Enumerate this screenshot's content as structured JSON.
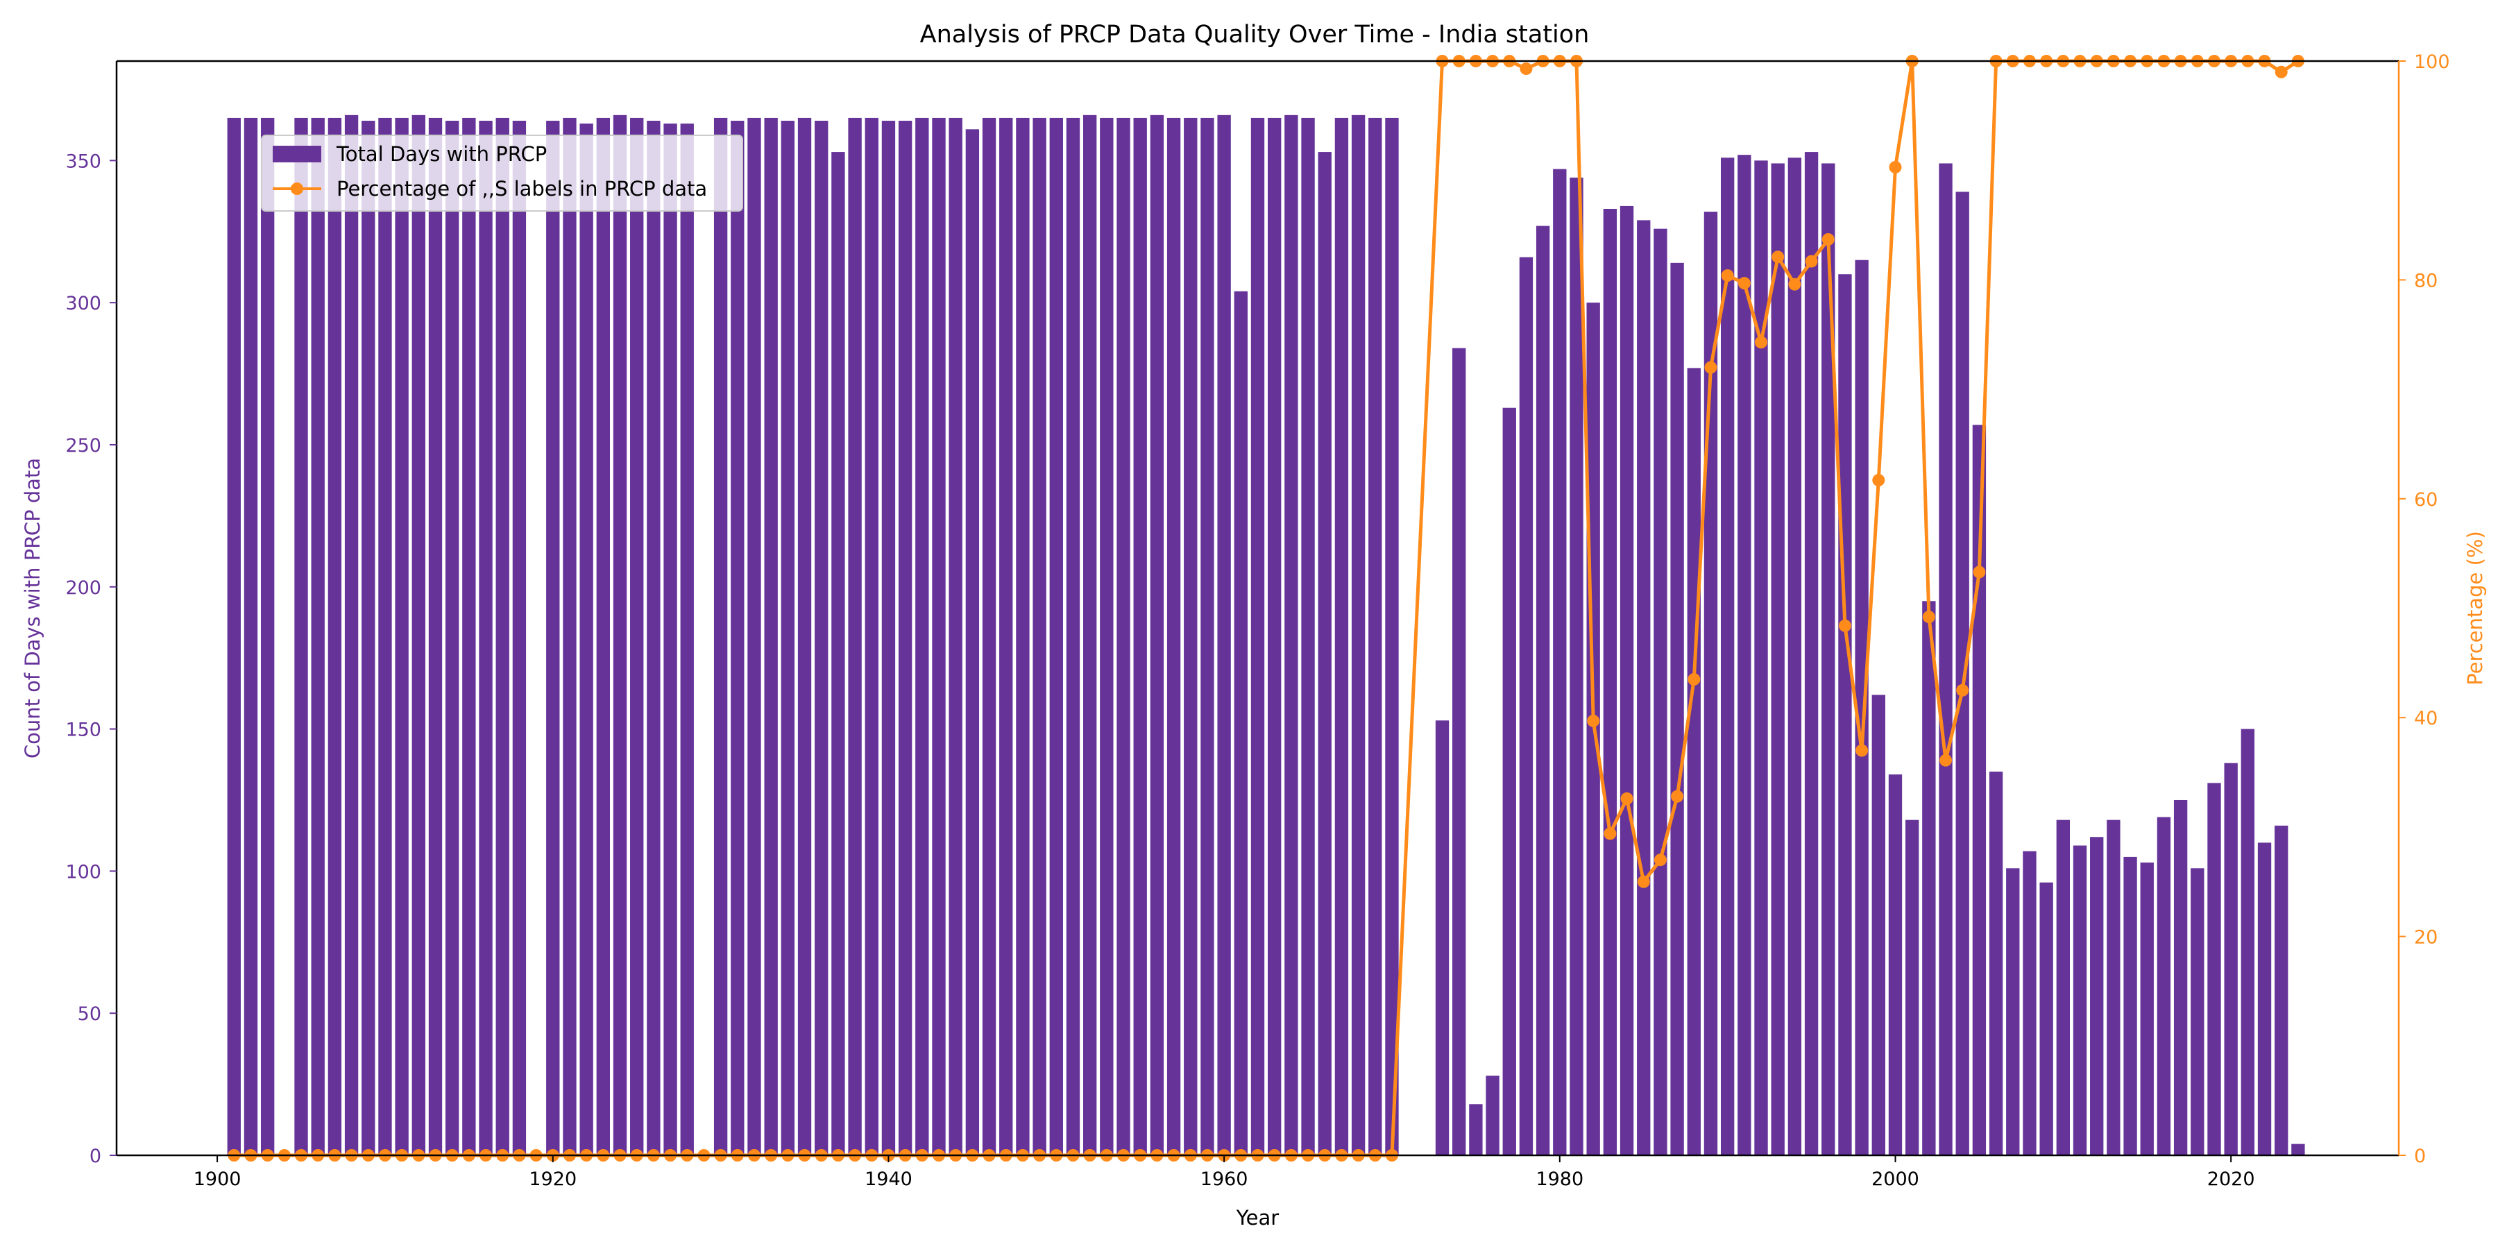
{
  "chart_data": {
    "type": "bar+line",
    "title": "Analysis of PRCP Data Quality Over Time - India station",
    "xlabel": "Year",
    "ylabel_left": "Count of Days with PRCP data",
    "ylabel_right": "Percentage (%)",
    "xlim": [
      1894,
      2030
    ],
    "ylim_left": [
      0,
      385
    ],
    "ylim_right": [
      0,
      100
    ],
    "x_ticks": [
      1900,
      1920,
      1940,
      1960,
      1980,
      2000,
      2020
    ],
    "y_left_ticks": [
      0,
      50,
      100,
      150,
      200,
      250,
      300,
      350
    ],
    "y_right_ticks": [
      0,
      20,
      40,
      60,
      80,
      100
    ],
    "grid": false,
    "legend_position": "upper-left",
    "colors": {
      "bars": "#663399",
      "line": "#ff8c1a",
      "axis": "#000000"
    },
    "series": [
      {
        "name": "Total Days with PRCP",
        "kind": "bar",
        "axis": "left",
        "x": [
          1901,
          1902,
          1903,
          1904,
          1905,
          1906,
          1907,
          1908,
          1909,
          1910,
          1911,
          1912,
          1913,
          1914,
          1915,
          1916,
          1917,
          1918,
          1919,
          1920,
          1921,
          1922,
          1923,
          1924,
          1925,
          1926,
          1927,
          1928,
          1929,
          1930,
          1931,
          1932,
          1933,
          1934,
          1935,
          1936,
          1937,
          1938,
          1939,
          1940,
          1941,
          1942,
          1943,
          1944,
          1945,
          1946,
          1947,
          1948,
          1949,
          1950,
          1951,
          1952,
          1953,
          1954,
          1955,
          1956,
          1957,
          1958,
          1959,
          1960,
          1961,
          1962,
          1963,
          1964,
          1965,
          1966,
          1967,
          1968,
          1969,
          1970,
          1973,
          1974,
          1975,
          1976,
          1977,
          1978,
          1979,
          1980,
          1981,
          1982,
          1983,
          1984,
          1985,
          1986,
          1987,
          1988,
          1989,
          1990,
          1991,
          1992,
          1993,
          1994,
          1995,
          1996,
          1997,
          1998,
          1999,
          2000,
          2001,
          2002,
          2003,
          2004,
          2005,
          2006,
          2007,
          2008,
          2009,
          2010,
          2011,
          2012,
          2013,
          2014,
          2015,
          2016,
          2017,
          2018,
          2019,
          2020,
          2021,
          2022,
          2023,
          2024
        ],
        "values": [
          365,
          365,
          365,
          0,
          365,
          365,
          365,
          366,
          364,
          365,
          365,
          366,
          365,
          364,
          365,
          364,
          365,
          364,
          0,
          364,
          365,
          363,
          365,
          366,
          365,
          364,
          363,
          363,
          0,
          365,
          364,
          365,
          365,
          364,
          365,
          364,
          353,
          365,
          365,
          364,
          364,
          365,
          365,
          365,
          361,
          365,
          365,
          365,
          365,
          365,
          365,
          366,
          365,
          365,
          365,
          366,
          365,
          365,
          365,
          366,
          304,
          365,
          365,
          366,
          365,
          353,
          365,
          366,
          365,
          365,
          153,
          284,
          18,
          28,
          263,
          316,
          327,
          347,
          344,
          300,
          333,
          334,
          329,
          326,
          314,
          277,
          332,
          351,
          352,
          350,
          349,
          351,
          353,
          349,
          310,
          315,
          162,
          134,
          118,
          195,
          349,
          339,
          257,
          135,
          101,
          107,
          96,
          118,
          109,
          112,
          118,
          105,
          103,
          119,
          125,
          101,
          131,
          138,
          150,
          110,
          116,
          4
        ]
      },
      {
        "name": "Percentage of ,,S labels in PRCP data",
        "kind": "line",
        "axis": "right",
        "x": [
          1901,
          1902,
          1903,
          1904,
          1905,
          1906,
          1907,
          1908,
          1909,
          1910,
          1911,
          1912,
          1913,
          1914,
          1915,
          1916,
          1917,
          1918,
          1919,
          1920,
          1921,
          1922,
          1923,
          1924,
          1925,
          1926,
          1927,
          1928,
          1929,
          1930,
          1931,
          1932,
          1933,
          1934,
          1935,
          1936,
          1937,
          1938,
          1939,
          1940,
          1941,
          1942,
          1943,
          1944,
          1945,
          1946,
          1947,
          1948,
          1949,
          1950,
          1951,
          1952,
          1953,
          1954,
          1955,
          1956,
          1957,
          1958,
          1959,
          1960,
          1961,
          1962,
          1963,
          1964,
          1965,
          1966,
          1967,
          1968,
          1969,
          1970,
          1973,
          1974,
          1975,
          1976,
          1977,
          1978,
          1979,
          1980,
          1981,
          1982,
          1983,
          1984,
          1985,
          1986,
          1987,
          1988,
          1989,
          1990,
          1991,
          1992,
          1993,
          1994,
          1995,
          1996,
          1997,
          1998,
          1999,
          2000,
          2001,
          2002,
          2003,
          2004,
          2005,
          2006,
          2007,
          2008,
          2009,
          2010,
          2011,
          2012,
          2013,
          2014,
          2015,
          2016,
          2017,
          2018,
          2019,
          2020,
          2021,
          2022,
          2023,
          2024
        ],
        "values": [
          0,
          0,
          0,
          0,
          0,
          0,
          0,
          0,
          0,
          0,
          0,
          0,
          0,
          0,
          0,
          0,
          0,
          0,
          0,
          0,
          0,
          0,
          0,
          0,
          0,
          0,
          0,
          0,
          0,
          0,
          0,
          0,
          0,
          0,
          0,
          0,
          0,
          0,
          0,
          0,
          0,
          0,
          0,
          0,
          0,
          0,
          0,
          0,
          0,
          0,
          0,
          0,
          0,
          0,
          0,
          0,
          0,
          0,
          0,
          0,
          0,
          0,
          0,
          0,
          0,
          0,
          0,
          0,
          0,
          0,
          100,
          100,
          100,
          100,
          100,
          99.3,
          100,
          100,
          100,
          39.7,
          29.4,
          32.6,
          25,
          27,
          32.8,
          43.5,
          72,
          80.4,
          79.7,
          74.3,
          82.1,
          79.6,
          81.7,
          83.7,
          48.4,
          37,
          61.7,
          90.3,
          100,
          49.2,
          36.1,
          42.5,
          53.3,
          100,
          100,
          100,
          100,
          100,
          100,
          100,
          100,
          100,
          100,
          100,
          100,
          100,
          100,
          100,
          100,
          100,
          99,
          100
        ]
      }
    ]
  }
}
